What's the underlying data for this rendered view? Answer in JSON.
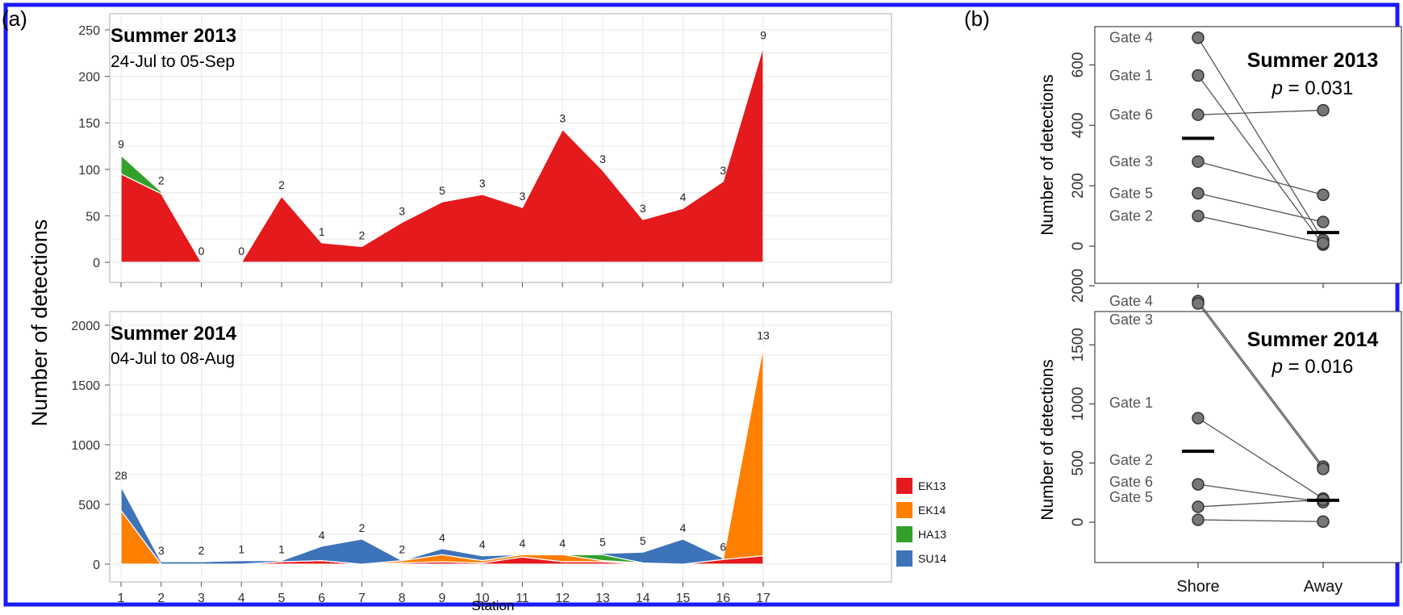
{
  "panel_labels": {
    "a": "(a)",
    "b": "(b)"
  },
  "colors": {
    "EK13": "#e41a1c",
    "EK14": "#ff7f00",
    "HA13": "#33a02c",
    "SU14": "#3c73b9",
    "frame": "#1a1aff"
  },
  "left": {
    "ylabel": "Number of detections",
    "xlabel": "Station",
    "legend": [
      {
        "key": "EK13",
        "label": "EK13"
      },
      {
        "key": "EK14",
        "label": "EK14"
      },
      {
        "key": "HA13",
        "label": "HA13"
      },
      {
        "key": "SU14",
        "label": "SU14"
      }
    ],
    "top": {
      "title": "Summer 2013",
      "subtitle": "24-Jul to 05-Sep"
    },
    "bottom": {
      "title": "Summer 2014",
      "subtitle": "04-Jul to 08-Aug"
    }
  },
  "right": {
    "ylabel": "Number of detections",
    "xticks": [
      "Shore",
      "Away"
    ],
    "top": {
      "title": "Summer 2013",
      "p_label": "p",
      "p_value": " = 0.031"
    },
    "bottom": {
      "title": "Summer 2014",
      "p_label": "p",
      "p_value": " = 0.016"
    }
  },
  "chart_data": [
    {
      "type": "area",
      "title": "Summer 2013",
      "subtitle": "24-Jul to 05-Sep",
      "xlabel": "Station",
      "ylabel": "Number of detections",
      "x": [
        1,
        2,
        3,
        4,
        5,
        6,
        7,
        8,
        9,
        10,
        11,
        12,
        13,
        14,
        15,
        16,
        17
      ],
      "ylim": [
        0,
        250
      ],
      "yticks": [
        0,
        50,
        100,
        150,
        200,
        250
      ],
      "grid": true,
      "series": [
        {
          "name": "EK13",
          "values": [
            95,
            74,
            0,
            0,
            71,
            21,
            17,
            43,
            65,
            73,
            59,
            143,
            99,
            46,
            58,
            87,
            232
          ]
        },
        {
          "name": "HA13",
          "values": [
            20,
            2,
            0,
            0,
            0,
            0,
            0,
            0,
            0,
            0,
            0,
            0,
            0,
            0,
            0,
            0,
            0
          ]
        }
      ],
      "segment_breaks_after": [
        3
      ],
      "data_labels": [
        "9",
        "2",
        "0",
        "0",
        "2",
        "1",
        "2",
        "3",
        "5",
        "3",
        "3",
        "3",
        "3",
        "3",
        "4",
        "3",
        "9"
      ]
    },
    {
      "type": "area",
      "title": "Summer 2014",
      "subtitle": "04-Jul to 08-Aug",
      "xlabel": "Station",
      "ylabel": "Number of detections",
      "x": [
        1,
        2,
        3,
        4,
        5,
        6,
        7,
        8,
        9,
        10,
        11,
        12,
        13,
        14,
        15,
        16,
        17
      ],
      "ylim": [
        0,
        2000
      ],
      "yticks": [
        0,
        500,
        1000,
        1500,
        2000
      ],
      "grid": true,
      "series": [
        {
          "name": "EK13",
          "values": [
            0,
            0,
            0,
            0,
            20,
            30,
            0,
            10,
            20,
            10,
            60,
            20,
            20,
            0,
            0,
            40,
            70
          ]
        },
        {
          "name": "EK14",
          "values": [
            450,
            0,
            0,
            0,
            0,
            0,
            0,
            20,
            60,
            20,
            20,
            60,
            10,
            10,
            0,
            0,
            1750
          ]
        },
        {
          "name": "HA13",
          "values": [
            0,
            0,
            0,
            0,
            0,
            0,
            0,
            0,
            0,
            0,
            0,
            0,
            50,
            0,
            0,
            0,
            0
          ]
        },
        {
          "name": "SU14",
          "values": [
            200,
            20,
            20,
            30,
            10,
            120,
            210,
            0,
            50,
            40,
            0,
            0,
            10,
            90,
            210,
            10,
            0
          ]
        }
      ],
      "data_labels": [
        "28",
        "3",
        "2",
        "1",
        "1",
        "4",
        "2",
        "2",
        "4",
        "4",
        "4",
        "4",
        "5",
        "5",
        "4",
        "6",
        "13"
      ]
    },
    {
      "type": "scatter",
      "title": "Summer 2013",
      "ylabel": "Number of detections",
      "categories": [
        "Shore",
        "Away"
      ],
      "ylim": [
        0,
        700
      ],
      "yticks": [
        0,
        200,
        400,
        600
      ],
      "stat": "p = 0.031",
      "pairs": [
        {
          "name": "Gate 4",
          "shore": 690,
          "away": 20
        },
        {
          "name": "Gate 1",
          "shore": 565,
          "away": 5
        },
        {
          "name": "Gate 6",
          "shore": 435,
          "away": 450
        },
        {
          "name": "Gate 3",
          "shore": 280,
          "away": 170
        },
        {
          "name": "Gate 5",
          "shore": 175,
          "away": 80
        },
        {
          "name": "Gate 2",
          "shore": 100,
          "away": 10
        }
      ],
      "means": {
        "shore": 357,
        "away": 45
      }
    },
    {
      "type": "scatter",
      "title": "Summer 2014",
      "ylabel": "Number of detections",
      "categories": [
        "Shore",
        "Away"
      ],
      "ylim": [
        0,
        2000
      ],
      "yticks": [
        0,
        500,
        1000,
        1500,
        2000
      ],
      "stat": "p = 0.016",
      "pairs": [
        {
          "name": "Gate 4",
          "shore": 1870,
          "away": 470
        },
        {
          "name": "Gate 3",
          "shore": 1850,
          "away": 450
        },
        {
          "name": "Gate 1",
          "shore": 880,
          "away": 200
        },
        {
          "name": "Gate 2",
          "shore": 320,
          "away": 170
        },
        {
          "name": "Gate 6",
          "shore": 130,
          "away": 190
        },
        {
          "name": "Gate 5",
          "shore": 20,
          "away": 5
        }
      ],
      "means": {
        "shore": 600,
        "away": 185
      }
    }
  ]
}
